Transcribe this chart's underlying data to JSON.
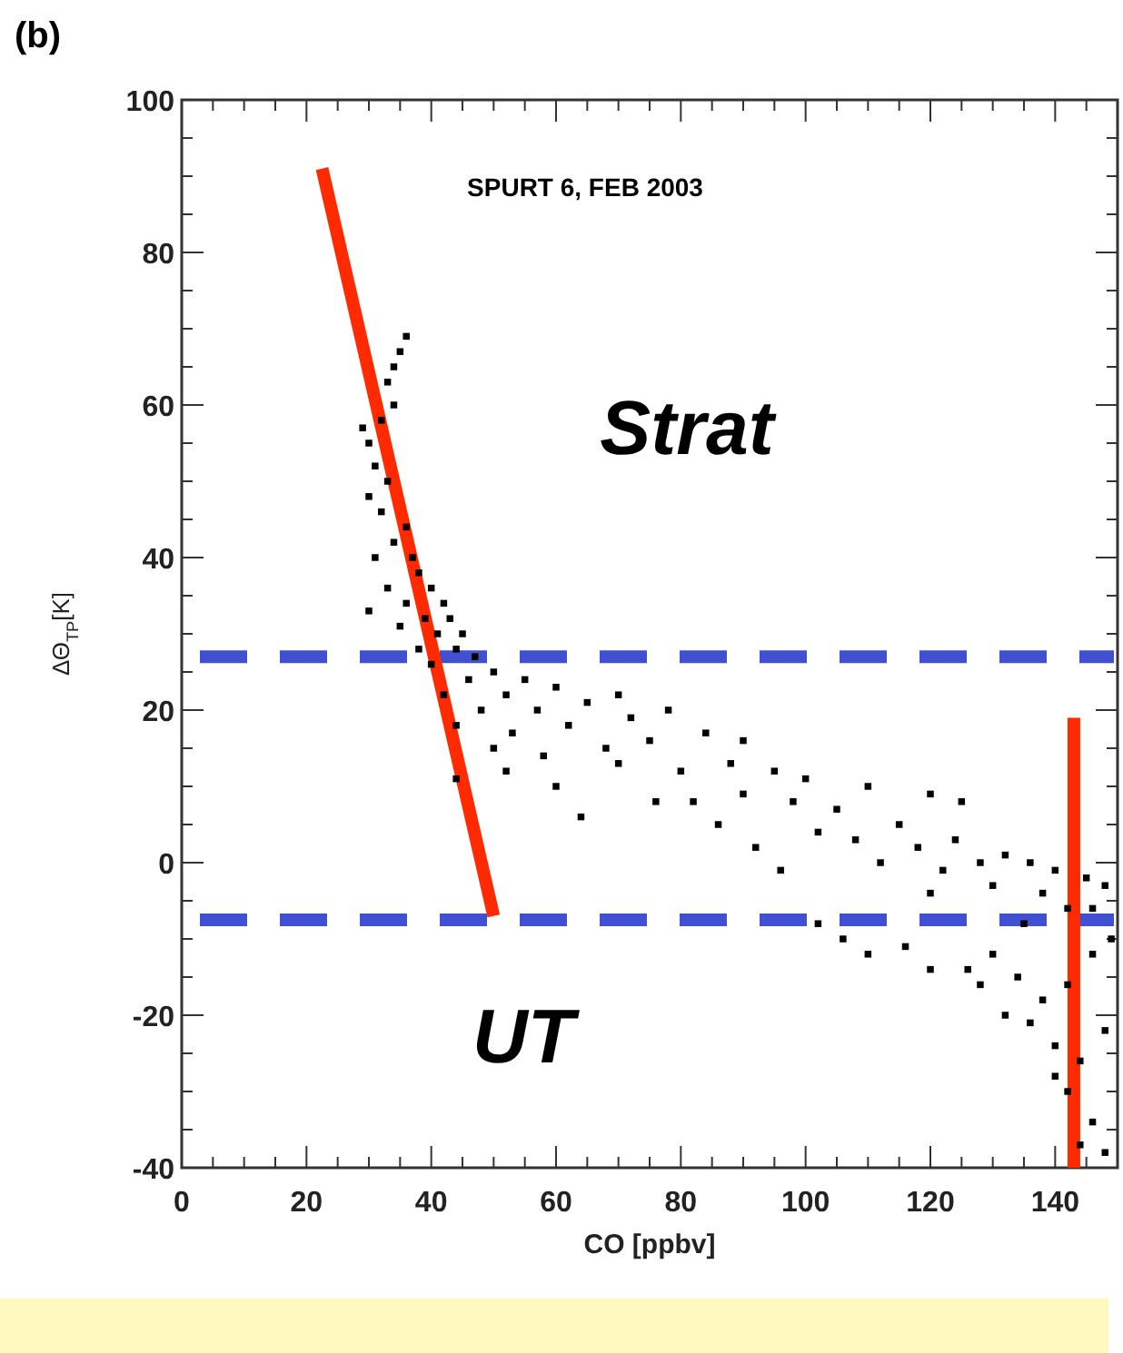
{
  "chart_data": {
    "type": "scatter",
    "title": "(b)",
    "subtitle": "SPURT 6, FEB 2003",
    "xlabel": "CO [ppbv]",
    "ylabel": "ΔΘ$_{TP}$[K]",
    "annotations": [
      "Strat",
      "UT"
    ],
    "xlim": [
      0,
      150
    ],
    "ylim": [
      -40,
      100
    ],
    "xticks": [
      0,
      {
        "value": 5,
        "label": null
      },
      {
        "value": 10,
        "label": null
      },
      {
        "value": 15,
        "label": null
      },
      20,
      {
        "value": 25,
        "label": null
      },
      {
        "value": 30,
        "label": null
      },
      {
        "value": 35,
        "label": null
      },
      40,
      {
        "value": 45,
        "label": null
      },
      {
        "value": 50,
        "label": null
      },
      {
        "value": 55,
        "label": null
      },
      60,
      {
        "value": 65,
        "label": null
      },
      {
        "value": 70,
        "label": null
      },
      {
        "value": 75,
        "label": null
      },
      80,
      {
        "value": 85,
        "label": null
      },
      {
        "value": 90,
        "label": null
      },
      {
        "value": 95,
        "label": null
      },
      100,
      {
        "value": 105,
        "label": null
      },
      {
        "value": 110,
        "label": null
      },
      {
        "value": 115,
        "label": null
      },
      120,
      {
        "value": 125,
        "label": null
      },
      {
        "value": 130,
        "label": null
      },
      {
        "value": 135,
        "label": null
      },
      140,
      {
        "value": 145,
        "label": null
      }
    ],
    "yticks": [
      -40,
      {
        "value": -35,
        "label": null
      },
      {
        "value": -30,
        "label": null
      },
      {
        "value": -25,
        "label": null
      },
      -20,
      {
        "value": -15,
        "label": null
      },
      {
        "value": -10,
        "label": null
      },
      {
        "value": -5,
        "label": null
      },
      0,
      {
        "value": 5,
        "label": null
      },
      {
        "value": 10,
        "label": null
      },
      {
        "value": 15,
        "label": null
      },
      20,
      {
        "value": 25,
        "label": null
      },
      {
        "value": 30,
        "label": null
      },
      {
        "value": 35,
        "label": null
      },
      40,
      {
        "value": 45,
        "label": null
      },
      {
        "value": 50,
        "label": null
      },
      {
        "value": 55,
        "label": null
      },
      60,
      {
        "value": 65,
        "label": null
      },
      {
        "value": 70,
        "label": null
      },
      {
        "value": 75,
        "label": null
      },
      80,
      {
        "value": 85,
        "label": null
      },
      {
        "value": 90,
        "label": null
      },
      {
        "value": 95,
        "label": null
      },
      100
    ],
    "ref_lines": [
      {
        "axis": "y",
        "value": 27,
        "color": "#4050d0",
        "line_style": "dashed"
      },
      {
        "axis": "y",
        "value": -7.5,
        "color": "#4050d0",
        "line_style": "dashed"
      }
    ],
    "series": [
      {
        "marker": "square",
        "color": "#000000",
        "x": [
          36,
          35,
          34,
          33,
          34,
          32,
          29,
          30,
          31,
          33,
          30,
          32,
          36,
          34,
          31,
          37,
          38,
          33,
          40,
          36,
          42,
          30,
          39,
          43,
          35,
          41,
          45,
          38,
          44,
          47,
          40,
          50,
          46,
          55,
          42,
          52,
          60,
          48,
          57,
          65,
          70,
          44,
          53,
          62,
          72,
          78,
          50,
          58,
          68,
          75,
          84,
          90,
          44,
          52,
          60,
          70,
          80,
          88,
          95,
          82,
          90,
          98,
          105,
          100,
          110,
          115,
          102,
          108,
          120,
          118,
          124,
          125,
          128,
          132,
          136,
          140,
          145,
          148,
          112,
          122,
          130,
          138,
          142,
          146,
          102,
          106,
          110,
          116,
          120,
          126,
          130,
          134,
          138,
          142,
          146,
          140,
          144,
          148,
          136,
          142,
          146,
          148,
          144,
          140,
          132,
          120,
          86,
          76,
          64,
          92,
          96,
          135,
          128,
          149
        ],
        "values": [
          69,
          67,
          65,
          63,
          60,
          58,
          57,
          55,
          52,
          50,
          48,
          46,
          44,
          42,
          40,
          40,
          38,
          36,
          36,
          34,
          34,
          33,
          32,
          32,
          31,
          30,
          30,
          28,
          28,
          27,
          26,
          25,
          24,
          24,
          22,
          22,
          23,
          20,
          20,
          21,
          22,
          18,
          17,
          18,
          19,
          20,
          15,
          14,
          15,
          16,
          17,
          16,
          11,
          12,
          10,
          13,
          12,
          13,
          12,
          8,
          9,
          8,
          7,
          11,
          10,
          5,
          4,
          3,
          9,
          2,
          3,
          8,
          0,
          1,
          0,
          -1,
          -2,
          -3,
          0,
          -1,
          -3,
          -4,
          -6,
          -6,
          -8,
          -10,
          -12,
          -11,
          -14,
          -14,
          -12,
          -15,
          -18,
          -16,
          -12,
          -24,
          -26,
          -22,
          -21,
          -30,
          -34,
          -38,
          -37,
          -28,
          -20,
          -4,
          5,
          8,
          6,
          2,
          -1,
          -8,
          -16,
          -10
        ]
      },
      {
        "type": "line",
        "color": "#ff2a00",
        "x": [
          22.5,
          50
        ],
        "values": [
          91,
          -7
        ]
      },
      {
        "type": "line",
        "color": "#ff2a00",
        "x": [
          143,
          143
        ],
        "values": [
          19,
          -40
        ]
      }
    ]
  }
}
